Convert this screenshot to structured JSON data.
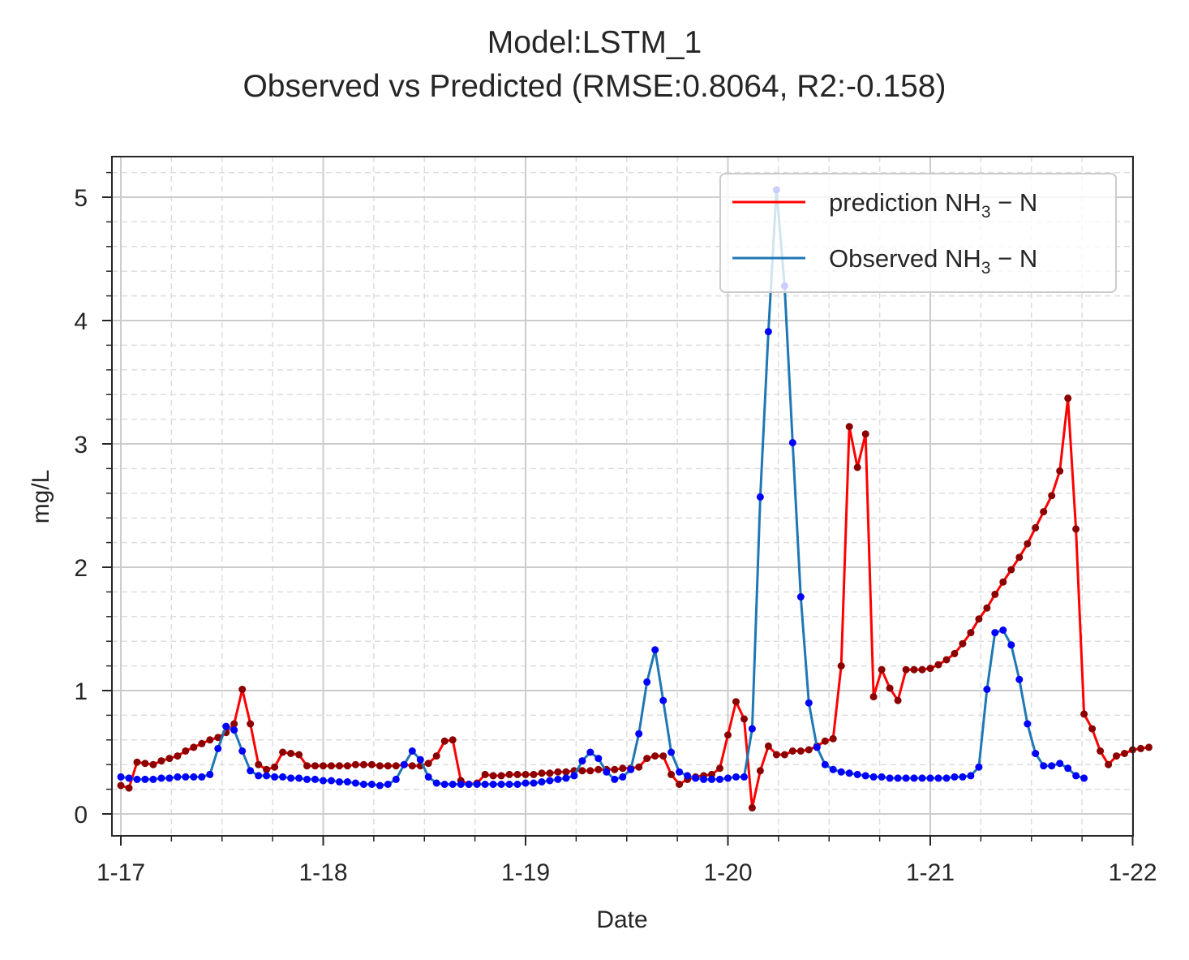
{
  "chart_data": {
    "type": "line",
    "title": "Model:LSTM_1",
    "subtitle": "Observed vs Predicted (RMSE:0.8064, R2:-0.158)",
    "xlabel": "Date",
    "ylabel": "mg/L",
    "x_ticks": [
      "1-17",
      "1-18",
      "1-19",
      "1-20",
      "1-21",
      "1-22"
    ],
    "y_ticks": [
      0,
      1,
      2,
      3,
      4,
      5
    ],
    "xlim": [
      -0.05,
      5.0
    ],
    "ylim": [
      -0.18,
      5.3
    ],
    "grid": true,
    "minor_grid": true,
    "legend_position": "top-right",
    "x_unit": "days since 1-17 (4 points per day)",
    "series": [
      {
        "name": "prediction NH3-N",
        "legend_main": "prediction NH",
        "legend_sub": "3",
        "legend_tail": " − N",
        "color": "#ff0000",
        "marker_color": "#8b0000",
        "values": [
          0.23,
          0.21,
          0.42,
          0.41,
          0.4,
          0.43,
          0.45,
          0.47,
          0.51,
          0.54,
          0.57,
          0.6,
          0.62,
          0.66,
          0.73,
          1.01,
          0.73,
          0.4,
          0.36,
          0.38,
          0.5,
          0.49,
          0.48,
          0.39,
          0.39,
          0.39,
          0.39,
          0.39,
          0.39,
          0.4,
          0.4,
          0.4,
          0.39,
          0.39,
          0.39,
          0.4,
          0.39,
          0.39,
          0.41,
          0.47,
          0.59,
          0.6,
          0.27,
          0.24,
          0.25,
          0.32,
          0.31,
          0.31,
          0.32,
          0.32,
          0.32,
          0.32,
          0.33,
          0.33,
          0.34,
          0.34,
          0.35,
          0.35,
          0.35,
          0.36,
          0.36,
          0.36,
          0.37,
          0.37,
          0.38,
          0.45,
          0.47,
          0.47,
          0.32,
          0.24,
          0.28,
          0.3,
          0.31,
          0.32,
          0.37,
          0.64,
          0.91,
          0.77,
          0.05,
          0.35,
          0.55,
          0.48,
          0.48,
          0.51,
          0.51,
          0.52,
          0.55,
          0.59,
          0.61,
          1.2,
          3.14,
          2.81,
          3.08,
          0.95,
          1.17,
          1.02,
          0.92,
          1.17,
          1.17,
          1.17,
          1.18,
          1.21,
          1.25,
          1.3,
          1.38,
          1.47,
          1.58,
          1.67,
          1.78,
          1.88,
          1.98,
          2.08,
          2.19,
          2.32,
          2.45,
          2.58,
          2.78,
          3.37,
          2.31,
          0.81,
          0.69,
          0.51,
          0.4,
          0.47,
          0.49,
          0.52,
          0.53,
          0.54
        ]
      },
      {
        "name": "Observed NH3-N",
        "legend_main": "Observed NH",
        "legend_sub": "3",
        "legend_tail": " − N",
        "color": "#1f77b4",
        "marker_color": "#0000ff",
        "values": [
          0.3,
          0.29,
          0.28,
          0.28,
          0.28,
          0.29,
          0.29,
          0.3,
          0.3,
          0.3,
          0.3,
          0.32,
          0.53,
          0.71,
          0.68,
          0.51,
          0.35,
          0.31,
          0.31,
          0.3,
          0.3,
          0.29,
          0.29,
          0.28,
          0.28,
          0.27,
          0.27,
          0.26,
          0.26,
          0.25,
          0.24,
          0.24,
          0.23,
          0.24,
          0.28,
          0.4,
          0.51,
          0.44,
          0.3,
          0.25,
          0.24,
          0.24,
          0.24,
          0.24,
          0.24,
          0.24,
          0.24,
          0.24,
          0.24,
          0.24,
          0.25,
          0.25,
          0.26,
          0.27,
          0.28,
          0.29,
          0.31,
          0.43,
          0.5,
          0.45,
          0.34,
          0.28,
          0.3,
          0.36,
          0.65,
          1.07,
          1.33,
          0.92,
          0.5,
          0.34,
          0.31,
          0.29,
          0.28,
          0.28,
          0.28,
          0.29,
          0.3,
          0.3,
          0.69,
          2.57,
          3.91,
          5.06,
          4.28,
          3.01,
          1.76,
          0.9,
          0.54,
          0.4,
          0.36,
          0.34,
          0.33,
          0.32,
          0.31,
          0.3,
          0.3,
          0.29,
          0.29,
          0.29,
          0.29,
          0.29,
          0.29,
          0.29,
          0.29,
          0.3,
          0.3,
          0.31,
          0.38,
          1.01,
          1.47,
          1.49,
          1.37,
          1.09,
          0.73,
          0.49,
          0.39,
          0.39,
          0.41,
          0.37,
          0.31,
          0.29
        ],
        "x_start": 0.0
      }
    ]
  }
}
